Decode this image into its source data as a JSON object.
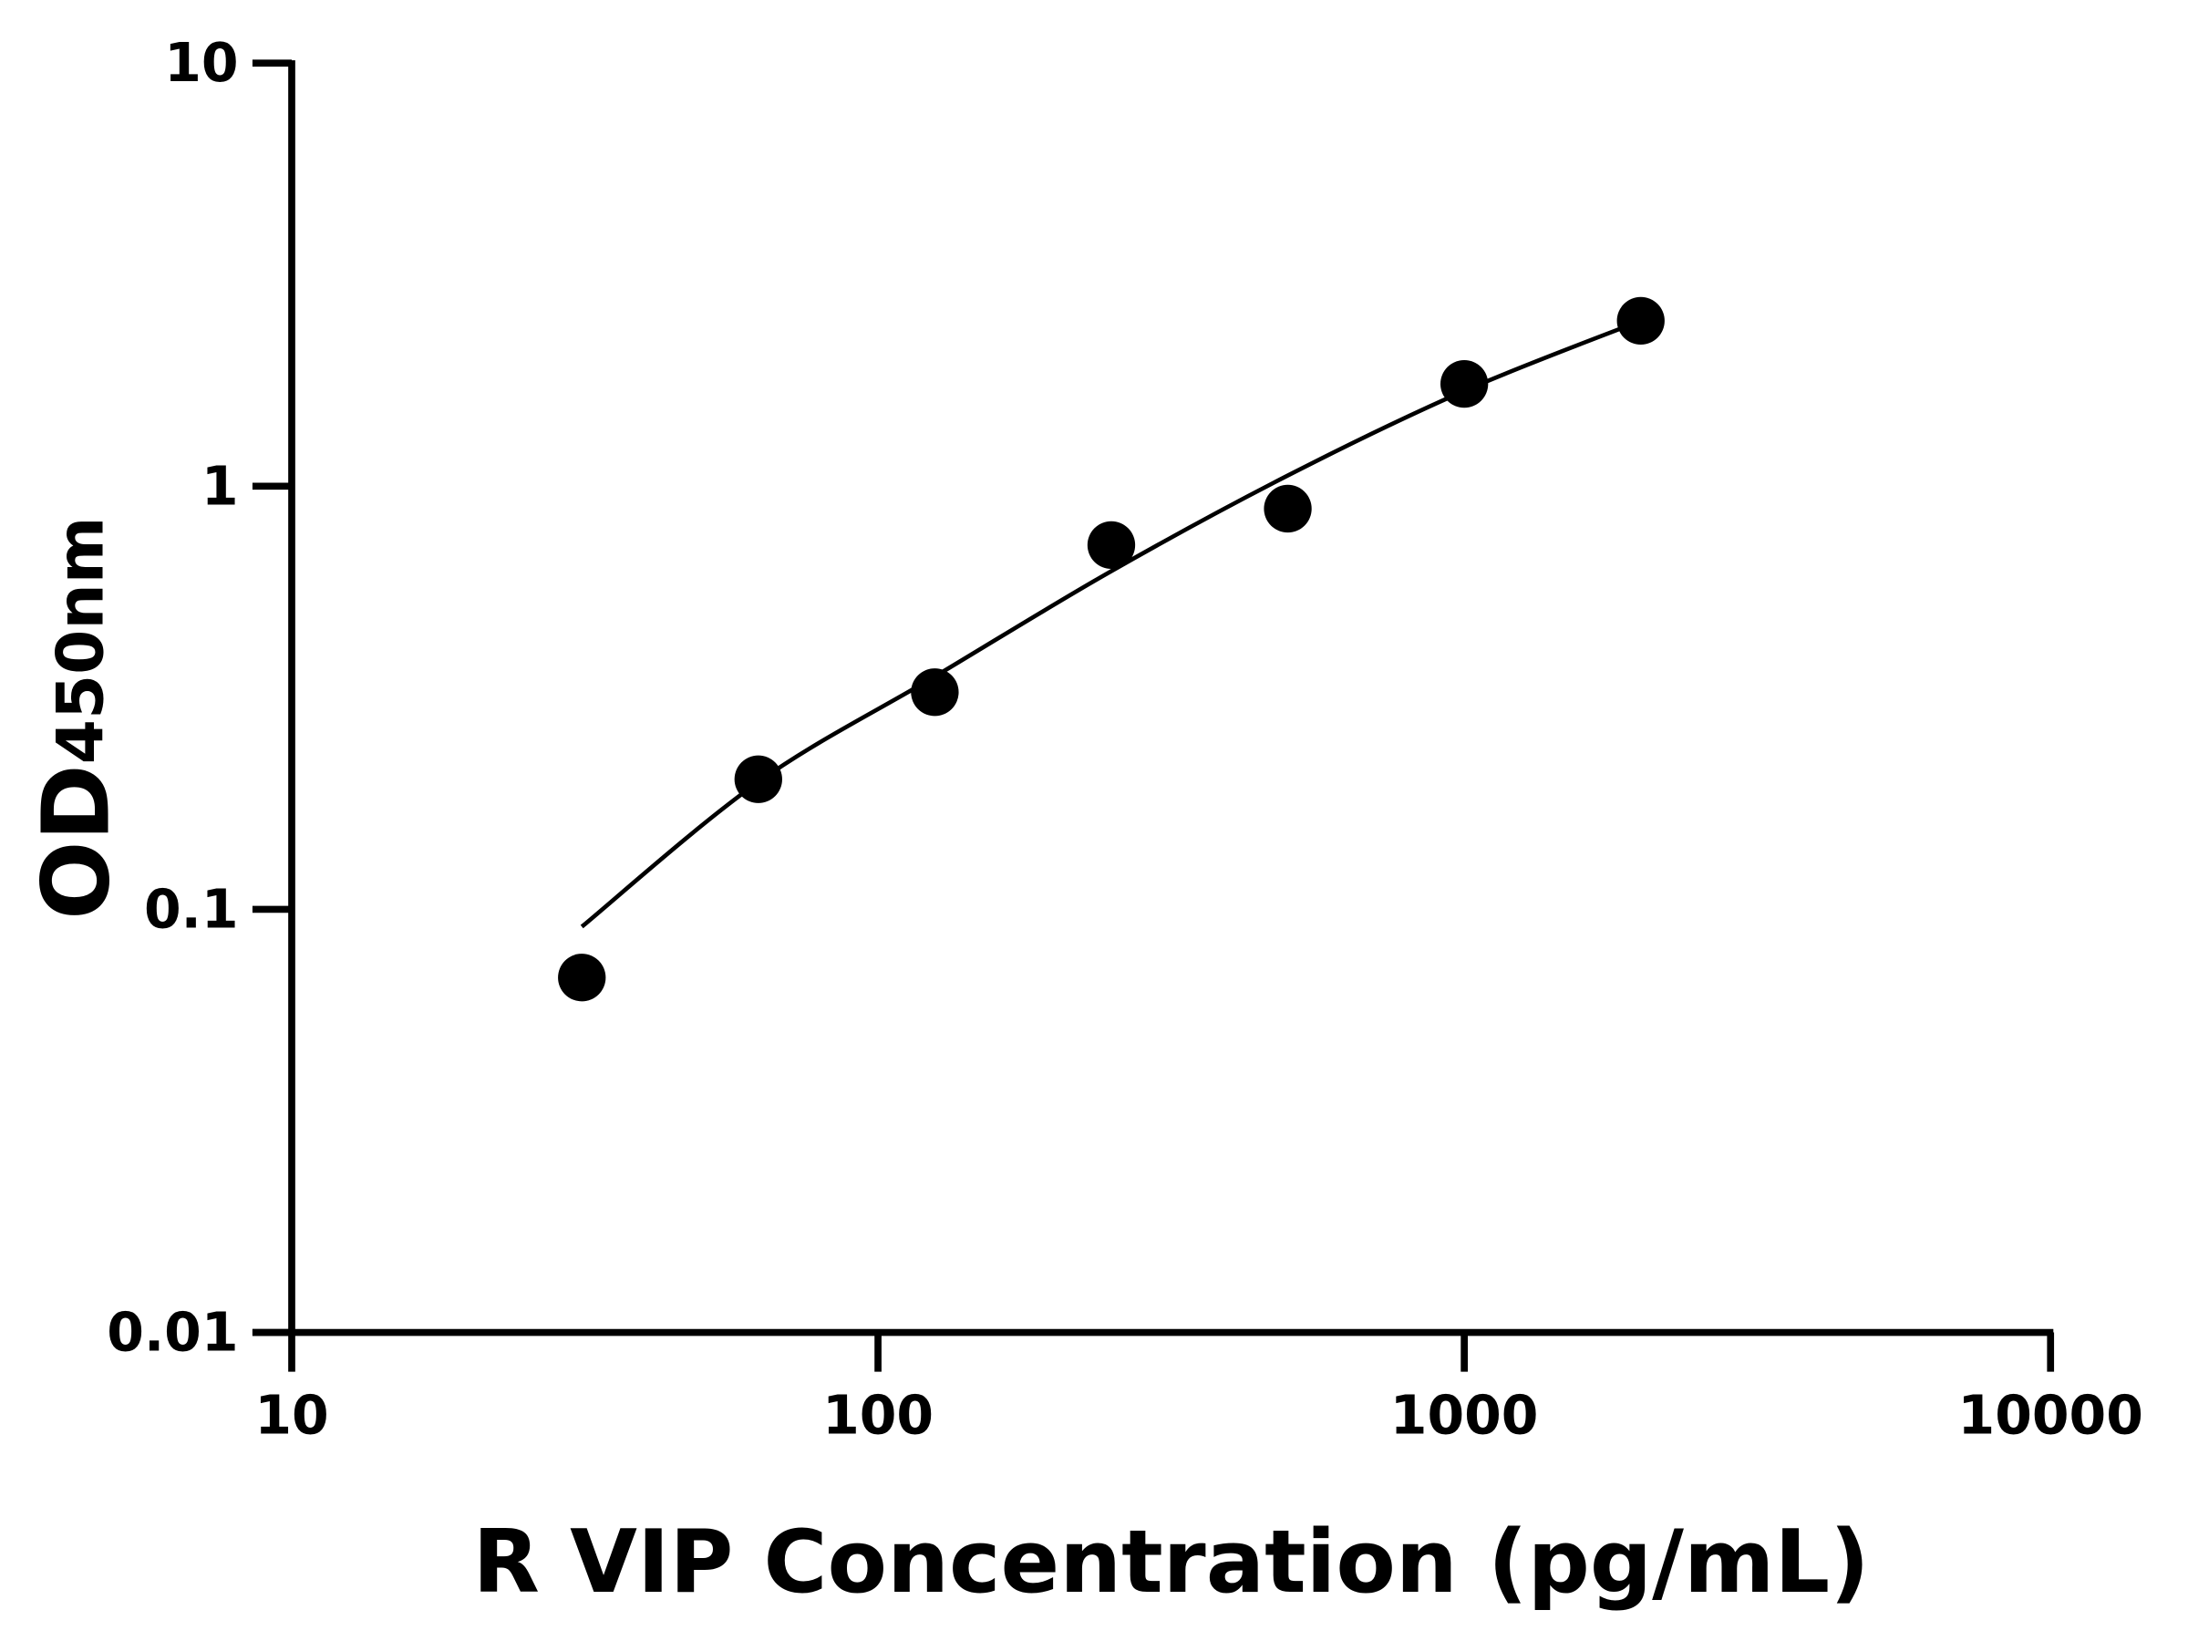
{
  "chart_data": {
    "type": "scatter",
    "title": "",
    "xlabel": "R VIP Concentration (pg/mL)",
    "ylabel": "OD",
    "ylabel_subscript": "450nm",
    "xscale": "log",
    "yscale": "log",
    "xlim": [
      10,
      10000
    ],
    "ylim": [
      0.01,
      10
    ],
    "xticks": [
      "10",
      "100",
      "1000",
      "10000"
    ],
    "yticks": [
      "0.01",
      "0.1",
      "1",
      "10"
    ],
    "grid": false,
    "legend": "none",
    "colors": {
      "points": "#000000",
      "curve": "#000000",
      "axes": "#000000"
    },
    "series": [
      {
        "kind": "points",
        "x": [
          31.25,
          62.5,
          125,
          250,
          500,
          1000,
          2000
        ],
        "y": [
          0.069,
          0.203,
          0.326,
          0.726,
          0.885,
          1.745,
          2.46
        ]
      },
      {
        "kind": "fitted-curve",
        "x": [
          31.25,
          62.5,
          125,
          250,
          500,
          1000,
          2000
        ],
        "y": [
          0.091,
          0.2,
          0.355,
          0.63,
          1.06,
          1.68,
          2.46
        ]
      }
    ]
  }
}
